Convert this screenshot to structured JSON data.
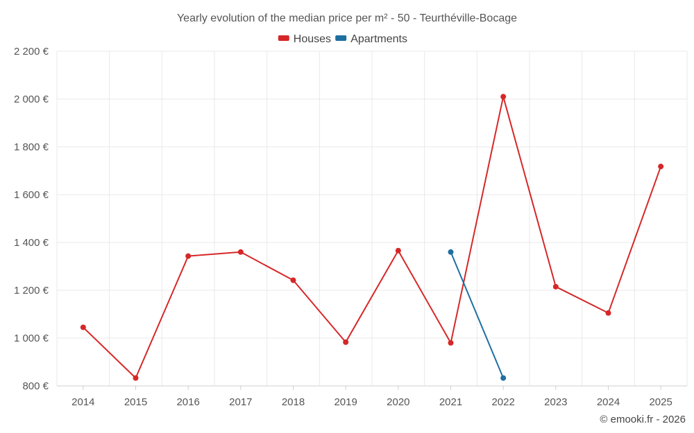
{
  "chart_data": {
    "type": "line",
    "title": "Yearly evolution of the median price per m² - 50 - Teurthéville-Bocage",
    "categories": [
      "2014",
      "2015",
      "2016",
      "2017",
      "2018",
      "2019",
      "2020",
      "2021",
      "2022",
      "2023",
      "2024",
      "2025"
    ],
    "ylim": [
      800,
      2200
    ],
    "yticks": [
      800,
      1000,
      1200,
      1400,
      1600,
      1800,
      2000,
      2200
    ],
    "ytick_labels": [
      "800 €",
      "1 000 €",
      "1 200 €",
      "1 400 €",
      "1 600 €",
      "1 800 €",
      "2 000 €",
      "2 200 €"
    ],
    "grid": true,
    "legend_position": "top-center",
    "series": [
      {
        "name": "Houses",
        "color": "#d62728",
        "values": [
          1045,
          833,
          1343,
          1360,
          1242,
          983,
          1366,
          980,
          2010,
          1215,
          1105,
          1718
        ]
      },
      {
        "name": "Apartments",
        "color": "#1f6fa0",
        "values": [
          null,
          null,
          null,
          null,
          null,
          null,
          null,
          1360,
          833,
          null,
          null,
          null
        ]
      }
    ],
    "credit": "© emooki.fr - 2026"
  }
}
